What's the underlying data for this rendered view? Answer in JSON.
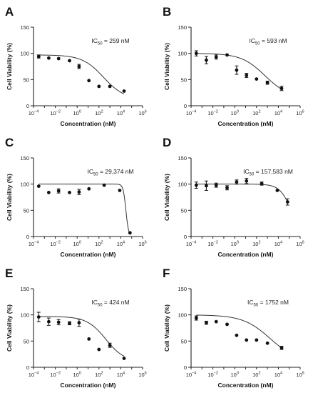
{
  "chart_data": [
    {
      "panel_label": "A",
      "type": "scatter",
      "ic50_prefix": "IC",
      "ic50_sub": "50",
      "ic50_value": " = 259 nM",
      "xlabel": "Concentration (nM)",
      "ylabel": "Cell Viability (%)",
      "xscale": "log",
      "xlim_exp": [
        -4,
        6
      ],
      "ylim": [
        0,
        150
      ],
      "xticks": [
        {
          "base": "10",
          "exp": "−4"
        },
        {
          "base": "10",
          "exp": "−2"
        },
        {
          "base": "10",
          "exp": "0"
        },
        {
          "base": "10",
          "exp": "2"
        },
        {
          "base": "10",
          "exp": "4"
        },
        {
          "base": "10",
          "exp": "6"
        }
      ],
      "yticks": [
        "0",
        "50",
        "100",
        "150"
      ],
      "x": [
        0.0003,
        0.0025,
        0.02,
        0.2,
        1.5,
        12,
        100,
        1000,
        20000
      ],
      "y": [
        94,
        91,
        90,
        86,
        75,
        48,
        37,
        37,
        28
      ],
      "err": [
        3,
        0,
        0,
        0,
        4,
        0,
        0,
        0,
        0
      ],
      "fit": {
        "top": 97,
        "bottom": 12,
        "log_ic50": 2.41,
        "hill": 0.45
      },
      "legend": "none",
      "grid": false
    },
    {
      "panel_label": "B",
      "type": "scatter",
      "ic50_prefix": "IC",
      "ic50_sub": "50",
      "ic50_value": " = 593 nM",
      "xlabel": "Concentration (nM)",
      "ylabel": "Cell Viability (%)",
      "xscale": "log",
      "xlim_exp": [
        -4,
        6
      ],
      "ylim": [
        0,
        150
      ],
      "xticks": [
        {
          "base": "10",
          "exp": "−4"
        },
        {
          "base": "10",
          "exp": "−2"
        },
        {
          "base": "10",
          "exp": "0"
        },
        {
          "base": "10",
          "exp": "2"
        },
        {
          "base": "10",
          "exp": "4"
        },
        {
          "base": "10",
          "exp": "6"
        }
      ],
      "yticks": [
        "0",
        "50",
        "100",
        "150"
      ],
      "x": [
        0.0003,
        0.0025,
        0.02,
        0.2,
        1.5,
        12,
        100,
        1000,
        20000
      ],
      "y": [
        100,
        87,
        93,
        97,
        68,
        58,
        51,
        44,
        33
      ],
      "err": [
        5,
        7,
        4,
        0,
        8,
        4,
        0,
        3,
        4
      ],
      "fit": {
        "top": 100,
        "bottom": 15,
        "log_ic50": 2.77,
        "hill": 0.4
      },
      "legend": "none",
      "grid": false
    },
    {
      "panel_label": "C",
      "type": "scatter",
      "ic50_prefix": "IC",
      "ic50_sub": "50",
      "ic50_value": " = 29,374 nM",
      "xlabel": "Concentration (nM)",
      "ylabel": "Cell Viability (%)",
      "xscale": "log",
      "xlim_exp": [
        -4,
        6
      ],
      "ylim": [
        0,
        150
      ],
      "xticks": [
        {
          "base": "10",
          "exp": "−4"
        },
        {
          "base": "10",
          "exp": "−2"
        },
        {
          "base": "10",
          "exp": "0"
        },
        {
          "base": "10",
          "exp": "2"
        },
        {
          "base": "10",
          "exp": "4"
        },
        {
          "base": "10",
          "exp": "6"
        }
      ],
      "yticks": [
        "0",
        "50",
        "100",
        "150"
      ],
      "x": [
        0.0003,
        0.0025,
        0.02,
        0.2,
        1.5,
        12,
        300,
        8000,
        70000
      ],
      "y": [
        96,
        84,
        87,
        84,
        85,
        91,
        98,
        88,
        7
      ],
      "err": [
        0,
        0,
        4,
        0,
        5,
        0,
        0,
        0,
        0
      ],
      "fit": {
        "top": 100,
        "bottom": 0,
        "log_ic50": 4.47,
        "hill": 3.5
      },
      "legend": "none",
      "grid": false
    },
    {
      "panel_label": "D",
      "type": "scatter",
      "ic50_prefix": "IC",
      "ic50_sub": "50",
      "ic50_value": " = 157,583 nM",
      "xlabel": "Concentration (nM)",
      "ylabel": "Cell Viability (%)",
      "xscale": "log",
      "xlim_exp": [
        -4,
        6
      ],
      "ylim": [
        0,
        150
      ],
      "xticks": [
        {
          "base": "10",
          "exp": "−4"
        },
        {
          "base": "10",
          "exp": "−2"
        },
        {
          "base": "10",
          "exp": "0"
        },
        {
          "base": "10",
          "exp": "2"
        },
        {
          "base": "10",
          "exp": "4"
        },
        {
          "base": "10",
          "exp": "6"
        }
      ],
      "yticks": [
        "0",
        "50",
        "100",
        "150"
      ],
      "x": [
        0.0003,
        0.0025,
        0.02,
        0.2,
        1.5,
        12,
        300,
        8000,
        70000
      ],
      "y": [
        98,
        97,
        98,
        93,
        104,
        106,
        101,
        88,
        66
      ],
      "err": [
        6,
        9,
        4,
        4,
        4,
        5,
        3,
        0,
        6
      ],
      "fit": {
        "top": 100,
        "bottom": 0,
        "log_ic50": 5.2,
        "hill": 0.8
      },
      "legend": "none",
      "grid": false
    },
    {
      "panel_label": "E",
      "type": "scatter",
      "ic50_prefix": "IC",
      "ic50_sub": "50",
      "ic50_value": " = 424 nM",
      "xlabel": "Concentration (nM)",
      "ylabel": "Cell Viability (%)",
      "xscale": "log",
      "xlim_exp": [
        -4,
        6
      ],
      "ylim": [
        0,
        150
      ],
      "xticks": [
        {
          "base": "10",
          "exp": "−4"
        },
        {
          "base": "10",
          "exp": "−2"
        },
        {
          "base": "10",
          "exp": "0"
        },
        {
          "base": "10",
          "exp": "2"
        },
        {
          "base": "10",
          "exp": "4"
        },
        {
          "base": "10",
          "exp": "6"
        }
      ],
      "yticks": [
        "0",
        "50",
        "100",
        "150"
      ],
      "x": [
        0.0003,
        0.0025,
        0.02,
        0.2,
        1.5,
        12,
        100,
        1000,
        20000
      ],
      "y": [
        96,
        87,
        86,
        84,
        85,
        54,
        34,
        42,
        17
      ],
      "err": [
        9,
        7,
        5,
        3,
        7,
        0,
        0,
        4,
        0
      ],
      "fit": {
        "top": 97,
        "bottom": 10,
        "log_ic50": 2.63,
        "hill": 0.5
      },
      "legend": "none",
      "grid": false
    },
    {
      "panel_label": "F",
      "type": "scatter",
      "ic50_prefix": "IC",
      "ic50_sub": "50",
      "ic50_value": " = 1752 nM",
      "xlabel": "Concentration (nM)",
      "ylabel": "Cell Viability (%)",
      "xscale": "log",
      "xlim_exp": [
        -4,
        6
      ],
      "ylim": [
        0,
        150
      ],
      "xticks": [
        {
          "base": "10",
          "exp": "−4"
        },
        {
          "base": "10",
          "exp": "−2"
        },
        {
          "base": "10",
          "exp": "0"
        },
        {
          "base": "10",
          "exp": "2"
        },
        {
          "base": "10",
          "exp": "4"
        },
        {
          "base": "10",
          "exp": "6"
        }
      ],
      "yticks": [
        "0",
        "50",
        "100",
        "150"
      ],
      "x": [
        0.0003,
        0.0025,
        0.02,
        0.2,
        1.5,
        12,
        100,
        1000,
        20000
      ],
      "y": [
        94,
        85,
        87,
        82,
        61,
        52,
        52,
        46,
        37
      ],
      "err": [
        4,
        3,
        0,
        0,
        0,
        0,
        0,
        0,
        3
      ],
      "fit": {
        "top": 100,
        "bottom": 10,
        "log_ic50": 3.24,
        "hill": 0.35
      },
      "legend": "none",
      "grid": false
    }
  ]
}
